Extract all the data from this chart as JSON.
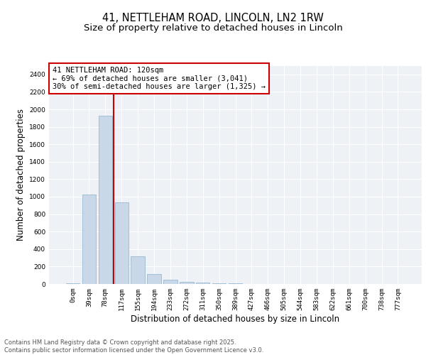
{
  "title_line1": "41, NETTLEHAM ROAD, LINCOLN, LN2 1RW",
  "title_line2": "Size of property relative to detached houses in Lincoln",
  "xlabel": "Distribution of detached houses by size in Lincoln",
  "ylabel": "Number of detached properties",
  "bar_color": "#c8d8e8",
  "bar_edge_color": "#8ab0cc",
  "categories": [
    "0sqm",
    "39sqm",
    "78sqm",
    "117sqm",
    "155sqm",
    "194sqm",
    "233sqm",
    "272sqm",
    "311sqm",
    "350sqm",
    "389sqm",
    "427sqm",
    "466sqm",
    "505sqm",
    "544sqm",
    "583sqm",
    "622sqm",
    "661sqm",
    "700sqm",
    "738sqm",
    "777sqm"
  ],
  "values": [
    10,
    1025,
    1925,
    935,
    315,
    110,
    45,
    25,
    15,
    10,
    5,
    2,
    1,
    1,
    0,
    0,
    0,
    0,
    0,
    0,
    0
  ],
  "ylim": [
    0,
    2500
  ],
  "yticks": [
    0,
    200,
    400,
    600,
    800,
    1000,
    1200,
    1400,
    1600,
    1800,
    2000,
    2200,
    2400
  ],
  "vline_x": 2.5,
  "vline_color": "#cc0000",
  "annotation_text": "41 NETTLEHAM ROAD: 120sqm\n← 69% of detached houses are smaller (3,041)\n30% of semi-detached houses are larger (1,325) →",
  "annotation_box_color": "#ffffff",
  "annotation_box_edge": "#cc0000",
  "background_color": "#eef2f7",
  "grid_color": "#ffffff",
  "footer_text": "Contains HM Land Registry data © Crown copyright and database right 2025.\nContains public sector information licensed under the Open Government Licence v3.0.",
  "title_fontsize": 10.5,
  "subtitle_fontsize": 9.5,
  "axis_label_fontsize": 8.5,
  "tick_fontsize": 6.5,
  "annotation_fontsize": 7.5
}
